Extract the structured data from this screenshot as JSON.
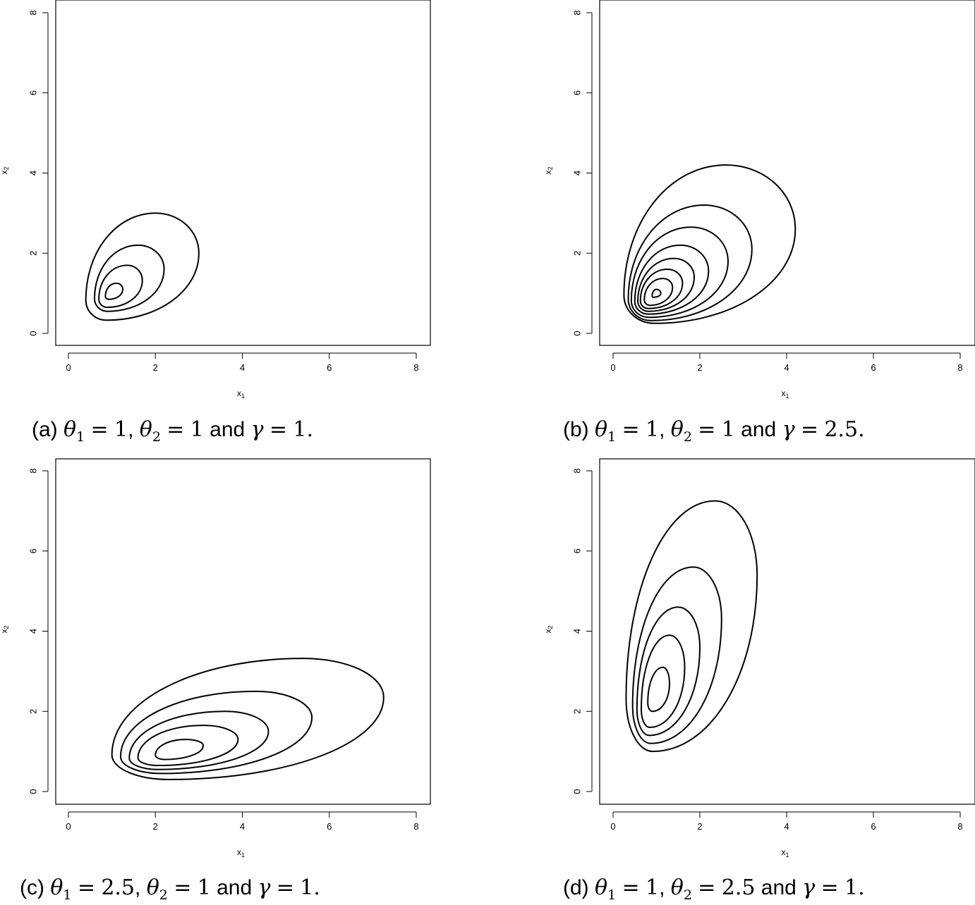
{
  "chart_data": [
    {
      "type": "contour",
      "caption": {
        "label": "(a)",
        "theta1": "1",
        "theta2": "1",
        "gamma": "1"
      },
      "xlabel": "x1",
      "ylabel": "x2",
      "xlim": [
        0,
        8
      ],
      "ylim": [
        0,
        8
      ],
      "xticks": [
        0,
        2,
        4,
        6,
        8
      ],
      "yticks": [
        0,
        2,
        4,
        6,
        8
      ],
      "contours": [
        {
          "xmin": 0.4,
          "xmax": 3.0,
          "ymin": 0.33,
          "ymax": 3.0,
          "xAtTop": 2.0,
          "yAtRight": 2.0
        },
        {
          "xmin": 0.6,
          "xmax": 2.2,
          "ymin": 0.55,
          "ymax": 2.2,
          "xAtTop": 1.6,
          "yAtRight": 1.6
        },
        {
          "xmin": 0.7,
          "xmax": 1.7,
          "ymin": 0.65,
          "ymax": 1.7,
          "xAtTop": 1.35,
          "yAtRight": 1.32
        },
        {
          "xmin": 0.85,
          "xmax": 1.25,
          "ymin": 0.85,
          "ymax": 1.25,
          "xAtTop": 1.1,
          "yAtRight": 1.1
        }
      ]
    },
    {
      "type": "contour",
      "caption": {
        "label": "(b)",
        "theta1": "1",
        "theta2": "1",
        "gamma": "2.5"
      },
      "xlabel": "x1",
      "ylabel": "x2",
      "xlim": [
        0,
        8
      ],
      "ylim": [
        0,
        8
      ],
      "xticks": [
        0,
        2,
        4,
        6,
        8
      ],
      "yticks": [
        0,
        2,
        4,
        6,
        8
      ],
      "contours": [
        {
          "xmin": 0.25,
          "xmax": 4.2,
          "ymin": 0.25,
          "ymax": 4.2,
          "xAtTop": 2.6,
          "yAtRight": 2.6
        },
        {
          "xmin": 0.35,
          "xmax": 3.2,
          "ymin": 0.32,
          "ymax": 3.2,
          "xAtTop": 2.1,
          "yAtRight": 2.1
        },
        {
          "xmin": 0.42,
          "xmax": 2.65,
          "ymin": 0.4,
          "ymax": 2.65,
          "xAtTop": 1.8,
          "yAtRight": 1.8
        },
        {
          "xmin": 0.5,
          "xmax": 2.2,
          "ymin": 0.48,
          "ymax": 2.2,
          "xAtTop": 1.55,
          "yAtRight": 1.55
        },
        {
          "xmin": 0.57,
          "xmax": 1.87,
          "ymin": 0.55,
          "ymax": 1.87,
          "xAtTop": 1.4,
          "yAtRight": 1.4
        },
        {
          "xmin": 0.63,
          "xmax": 1.6,
          "ymin": 0.62,
          "ymax": 1.6,
          "xAtTop": 1.25,
          "yAtRight": 1.25
        },
        {
          "xmin": 0.72,
          "xmax": 1.37,
          "ymin": 0.7,
          "ymax": 1.37,
          "xAtTop": 1.15,
          "yAtRight": 1.15
        },
        {
          "xmin": 0.9,
          "xmax": 1.1,
          "ymin": 0.9,
          "ymax": 1.1,
          "xAtTop": 1.0,
          "yAtRight": 1.0
        }
      ]
    },
    {
      "type": "contour",
      "caption": {
        "label": "(c)",
        "theta1": "2.5",
        "theta2": "1",
        "gamma": "1"
      },
      "xlabel": "x1",
      "ylabel": "x2",
      "xlim": [
        0,
        8
      ],
      "ylim": [
        0,
        8
      ],
      "xticks": [
        0,
        2,
        4,
        6,
        8
      ],
      "yticks": [
        0,
        2,
        4,
        6,
        8
      ],
      "contours": [
        {
          "xmin": 1.0,
          "xmax": 7.25,
          "ymin": 0.3,
          "ymax": 3.32,
          "xAtTop": 5.4,
          "yAtRight": 2.35
        },
        {
          "xmin": 1.2,
          "xmax": 5.6,
          "ymin": 0.45,
          "ymax": 2.5,
          "xAtTop": 4.3,
          "yAtRight": 1.85
        },
        {
          "xmin": 1.4,
          "xmax": 4.6,
          "ymin": 0.55,
          "ymax": 2.0,
          "xAtTop": 3.6,
          "yAtRight": 1.5
        },
        {
          "xmin": 1.6,
          "xmax": 3.9,
          "ymin": 0.65,
          "ymax": 1.65,
          "xAtTop": 3.1,
          "yAtRight": 1.3
        },
        {
          "xmin": 2.0,
          "xmax": 3.1,
          "ymin": 0.8,
          "ymax": 1.3,
          "xAtTop": 2.7,
          "yAtRight": 1.15
        }
      ]
    },
    {
      "type": "contour",
      "caption": {
        "label": "(d)",
        "theta1": "1",
        "theta2": "2.5",
        "gamma": "1"
      },
      "xlabel": "x1",
      "ylabel": "x2",
      "xlim": [
        0,
        8
      ],
      "ylim": [
        0,
        8
      ],
      "xticks": [
        0,
        2,
        4,
        6,
        8
      ],
      "yticks": [
        0,
        2,
        4,
        6,
        8
      ],
      "contours": [
        {
          "xmin": 0.3,
          "xmax": 3.32,
          "ymin": 1.0,
          "ymax": 7.25,
          "xAtTop": 2.35,
          "yAtRight": 5.4
        },
        {
          "xmin": 0.45,
          "xmax": 2.5,
          "ymin": 1.2,
          "ymax": 5.6,
          "xAtTop": 1.85,
          "yAtRight": 4.3
        },
        {
          "xmin": 0.55,
          "xmax": 2.0,
          "ymin": 1.4,
          "ymax": 4.6,
          "xAtTop": 1.5,
          "yAtRight": 3.6
        },
        {
          "xmin": 0.65,
          "xmax": 1.65,
          "ymin": 1.6,
          "ymax": 3.9,
          "xAtTop": 1.3,
          "yAtRight": 3.1
        },
        {
          "xmin": 0.8,
          "xmax": 1.3,
          "ymin": 2.0,
          "ymax": 3.1,
          "xAtTop": 1.15,
          "yAtRight": 2.7
        }
      ]
    }
  ]
}
